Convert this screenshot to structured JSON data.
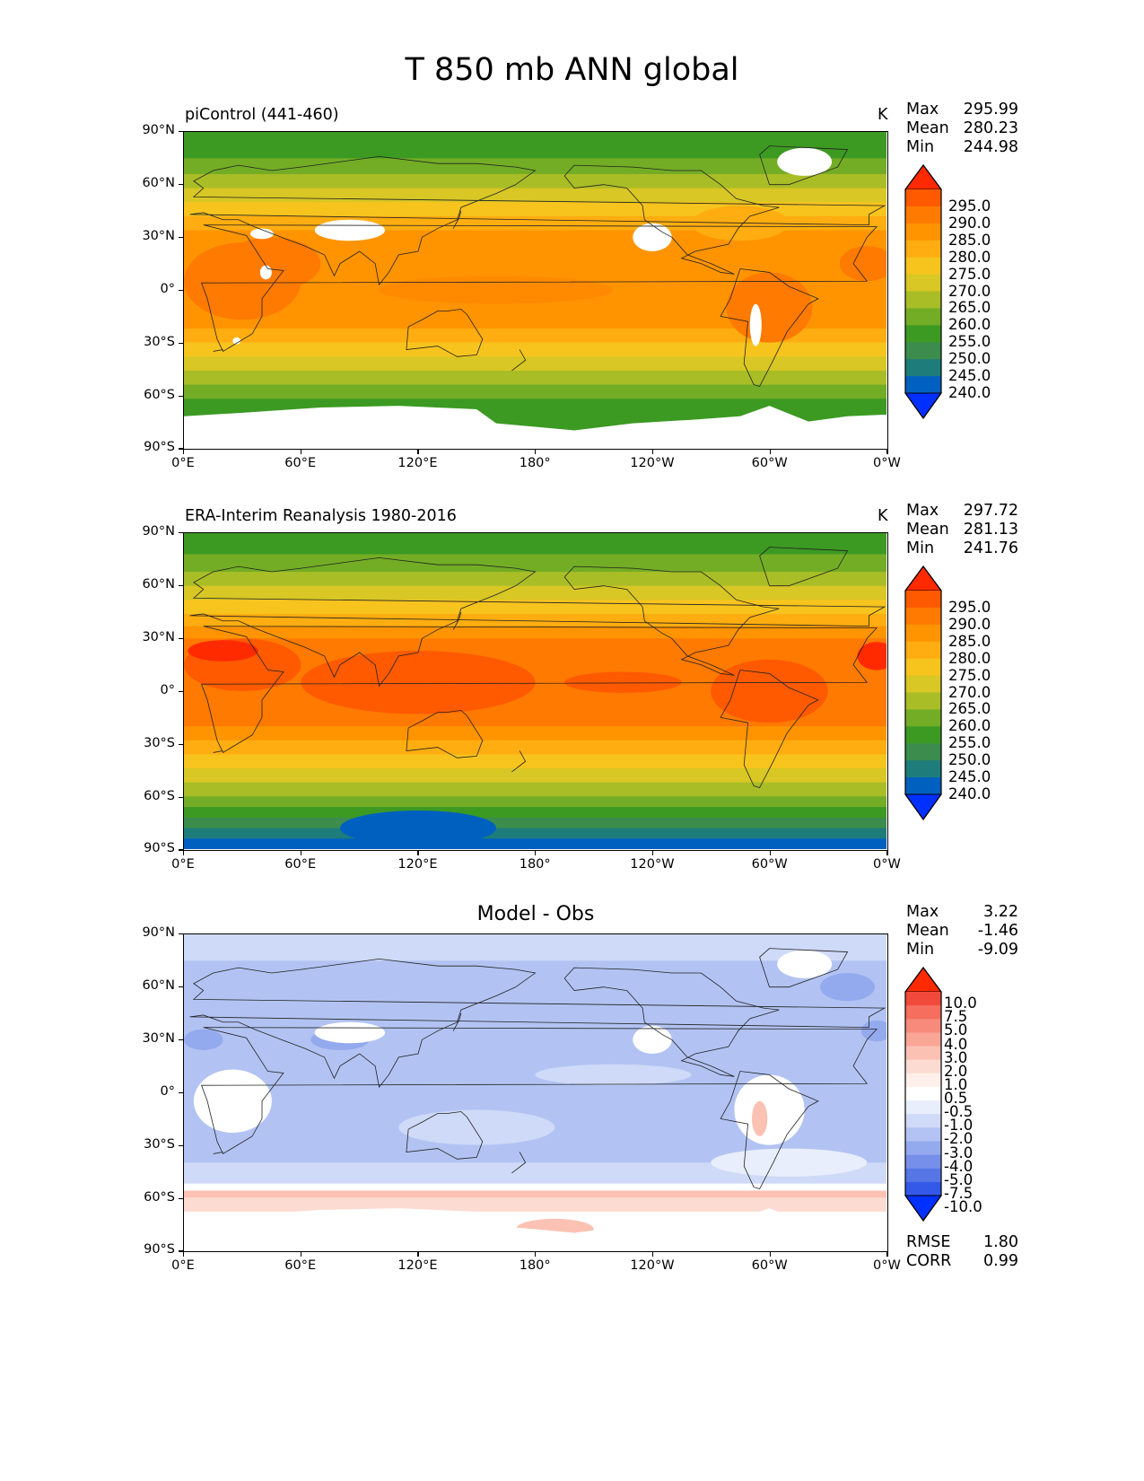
{
  "figure": {
    "title": "T 850 mb ANN global"
  },
  "chart_data": [
    {
      "type": "heatmap",
      "title": "piControl (441-460)",
      "units": "K",
      "stats": {
        "max_label": "Max",
        "max": "295.99",
        "mean_label": "Mean",
        "mean": "280.23",
        "min_label": "Min",
        "min": "244.98"
      },
      "xticks": [
        "0°E",
        "60°E",
        "120°E",
        "180°",
        "120°W",
        "60°W",
        "0°W"
      ],
      "yticks": [
        "90°N",
        "60°N",
        "30°N",
        "0°",
        "30°S",
        "60°S",
        "90°S"
      ],
      "xlim": [
        0,
        360
      ],
      "ylim": [
        -90,
        90
      ],
      "colorbar": {
        "labels": [
          "295.0",
          "290.0",
          "285.0",
          "280.0",
          "275.0",
          "270.0",
          "265.0",
          "260.0",
          "255.0",
          "250.0",
          "245.0",
          "240.0"
        ],
        "colors": [
          "#ff2a00",
          "#ff5a00",
          "#ff7a00",
          "#ff9400",
          "#ffad10",
          "#f7c41e",
          "#d8c724",
          "#a9bd27",
          "#73ad25",
          "#3c9a22",
          "#3c8d4d",
          "#1e7d7a",
          "#0060c0",
          "#0030ff"
        ]
      },
      "bands": [
        {
          "lat_top": 90,
          "lat_bottom": 75,
          "color": "#3c9a22"
        },
        {
          "lat_top": 75,
          "lat_bottom": 66,
          "color": "#73ad25"
        },
        {
          "lat_top": 66,
          "lat_bottom": 58,
          "color": "#a9bd27"
        },
        {
          "lat_top": 58,
          "lat_bottom": 50,
          "color": "#d8c724"
        },
        {
          "lat_top": 50,
          "lat_bottom": 42,
          "color": "#f7c41e"
        },
        {
          "lat_top": 42,
          "lat_bottom": 34,
          "color": "#ffad10"
        },
        {
          "lat_top": 34,
          "lat_bottom": -22,
          "color": "#ff9400"
        },
        {
          "lat_top": -22,
          "lat_bottom": -30,
          "color": "#ffad10"
        },
        {
          "lat_top": -30,
          "lat_bottom": -38,
          "color": "#f7c41e"
        },
        {
          "lat_top": -38,
          "lat_bottom": -46,
          "color": "#d8c724"
        },
        {
          "lat_top": -46,
          "lat_bottom": -54,
          "color": "#a9bd27"
        },
        {
          "lat_top": -54,
          "lat_bottom": -62,
          "color": "#73ad25"
        },
        {
          "lat_top": -62,
          "lat_bottom": -90,
          "color": "#3c9a22"
        }
      ],
      "patches": [
        {
          "lon": 30,
          "lat": 5,
          "rx": 30,
          "ry": 22,
          "color": "#ff7a00"
        },
        {
          "lon": 45,
          "lat": 15,
          "rx": 25,
          "ry": 15,
          "color": "#ff7a00"
        },
        {
          "lon": 300,
          "lat": -10,
          "rx": 22,
          "ry": 20,
          "color": "#ff7a00"
        },
        {
          "lon": 350,
          "lat": 15,
          "rx": 14,
          "ry": 10,
          "color": "#ff7a00"
        },
        {
          "lon": 160,
          "lat": 0,
          "rx": 60,
          "ry": 8,
          "color": "#ff8a00"
        },
        {
          "lon": 285,
          "lat": 38,
          "rx": 25,
          "ry": 10,
          "color": "#ffad10"
        }
      ],
      "masks": [
        {
          "lon": 85,
          "lat": 34,
          "rx": 18,
          "ry": 6
        },
        {
          "lon": 240,
          "lat": 30,
          "rx": 10,
          "ry": 8
        },
        {
          "lon": 293,
          "lat": -20,
          "rx": 3,
          "ry": 12
        },
        {
          "lon": 318,
          "lat": 73,
          "rx": 14,
          "ry": 8
        },
        {
          "lon": 42,
          "lat": 10,
          "rx": 3,
          "ry": 4
        },
        {
          "lon": 40,
          "lat": 32,
          "rx": 6,
          "ry": 3
        },
        {
          "lon": 27,
          "lat": -29,
          "rx": 2,
          "ry": 2
        }
      ],
      "antarctica_mask": true
    },
    {
      "type": "heatmap",
      "title": "ERA-Interim Reanalysis 1980-2016",
      "units": "K",
      "stats": {
        "max_label": "Max",
        "max": "297.72",
        "mean_label": "Mean",
        "mean": "281.13",
        "min_label": "Min",
        "min": "241.76"
      },
      "xticks": [
        "0°E",
        "60°E",
        "120°E",
        "180°",
        "120°W",
        "60°W",
        "0°W"
      ],
      "yticks": [
        "90°N",
        "60°N",
        "30°N",
        "0°",
        "30°S",
        "60°S",
        "90°S"
      ],
      "xlim": [
        0,
        360
      ],
      "ylim": [
        -90,
        90
      ],
      "colorbar": {
        "labels": [
          "295.0",
          "290.0",
          "285.0",
          "280.0",
          "275.0",
          "270.0",
          "265.0",
          "260.0",
          "255.0",
          "250.0",
          "245.0",
          "240.0"
        ],
        "colors": [
          "#ff2a00",
          "#ff5a00",
          "#ff7a00",
          "#ff9400",
          "#ffad10",
          "#f7c41e",
          "#d8c724",
          "#a9bd27",
          "#73ad25",
          "#3c9a22",
          "#3c8d4d",
          "#1e7d7a",
          "#0060c0",
          "#0030ff"
        ]
      },
      "bands": [
        {
          "lat_top": 90,
          "lat_bottom": 78,
          "color": "#3c9a22"
        },
        {
          "lat_top": 78,
          "lat_bottom": 68,
          "color": "#73ad25"
        },
        {
          "lat_top": 68,
          "lat_bottom": 60,
          "color": "#a9bd27"
        },
        {
          "lat_top": 60,
          "lat_bottom": 52,
          "color": "#d8c724"
        },
        {
          "lat_top": 52,
          "lat_bottom": 44,
          "color": "#f7c41e"
        },
        {
          "lat_top": 44,
          "lat_bottom": 37,
          "color": "#ffad10"
        },
        {
          "lat_top": 37,
          "lat_bottom": 30,
          "color": "#ff9400"
        },
        {
          "lat_top": 30,
          "lat_bottom": -20,
          "color": "#ff7a00"
        },
        {
          "lat_top": -20,
          "lat_bottom": -28,
          "color": "#ff9400"
        },
        {
          "lat_top": -28,
          "lat_bottom": -36,
          "color": "#ffad10"
        },
        {
          "lat_top": -36,
          "lat_bottom": -44,
          "color": "#f7c41e"
        },
        {
          "lat_top": -44,
          "lat_bottom": -52,
          "color": "#d8c724"
        },
        {
          "lat_top": -52,
          "lat_bottom": -60,
          "color": "#a9bd27"
        },
        {
          "lat_top": -60,
          "lat_bottom": -66,
          "color": "#73ad25"
        },
        {
          "lat_top": -66,
          "lat_bottom": -72,
          "color": "#3c9a22"
        },
        {
          "lat_top": -72,
          "lat_bottom": -78,
          "color": "#3c8d4d"
        },
        {
          "lat_top": -78,
          "lat_bottom": -84,
          "color": "#1e7d7a"
        },
        {
          "lat_top": -84,
          "lat_bottom": -90,
          "color": "#0060c0"
        }
      ],
      "patches": [
        {
          "lon": 120,
          "lat": 5,
          "rx": 60,
          "ry": 18,
          "color": "#ff5a00"
        },
        {
          "lon": 30,
          "lat": 15,
          "rx": 30,
          "ry": 15,
          "color": "#ff5a00"
        },
        {
          "lon": 20,
          "lat": 23,
          "rx": 18,
          "ry": 6,
          "color": "#ff2a00"
        },
        {
          "lon": 300,
          "lat": 0,
          "rx": 30,
          "ry": 18,
          "color": "#ff5a00"
        },
        {
          "lon": 355,
          "lat": 20,
          "rx": 10,
          "ry": 8,
          "color": "#ff2a00"
        },
        {
          "lon": 225,
          "lat": 5,
          "rx": 30,
          "ry": 6,
          "color": "#ff5a00"
        },
        {
          "lon": 120,
          "lat": -78,
          "rx": 40,
          "ry": 10,
          "color": "#0060c0"
        }
      ],
      "masks": [],
      "antarctica_mask": false
    },
    {
      "type": "heatmap",
      "title": "Model - Obs",
      "units": "",
      "stats": {
        "max_label": "Max",
        "max": "3.22",
        "mean_label": "Mean",
        "mean": "-1.46",
        "min_label": "Min",
        "min": "-9.09"
      },
      "metrics": {
        "rmse_label": "RMSE",
        "rmse": "1.80",
        "corr_label": "CORR",
        "corr": "0.99"
      },
      "xticks": [
        "0°E",
        "60°E",
        "120°E",
        "180°",
        "120°W",
        "60°W",
        "0°W"
      ],
      "yticks": [
        "90°N",
        "60°N",
        "30°N",
        "0°",
        "30°S",
        "60°S",
        "90°S"
      ],
      "xlim": [
        0,
        360
      ],
      "ylim": [
        -90,
        90
      ],
      "colorbar": {
        "labels": [
          "10.0",
          "7.5",
          "5.0",
          "4.0",
          "3.0",
          "2.0",
          "1.0",
          "0.5",
          "-0.5",
          "-1.0",
          "-2.0",
          "-3.0",
          "-4.0",
          "-5.0",
          "-7.5",
          "-10.0"
        ],
        "colors": [
          "#ff2a00",
          "#f14a3c",
          "#f56e5e",
          "#f78a7a",
          "#f9a696",
          "#fbc2b4",
          "#fcdcd2",
          "#feefea",
          "#ffffff",
          "#e8eefc",
          "#cfdaf8",
          "#b2c3f3",
          "#94aaee",
          "#7690ea",
          "#5676e6",
          "#3458e8",
          "#0030ff"
        ]
      },
      "bands": [
        {
          "lat_top": 90,
          "lat_bottom": 75,
          "color": "#cfdaf8"
        },
        {
          "lat_top": 75,
          "lat_bottom": 45,
          "color": "#b2c3f3"
        },
        {
          "lat_top": 45,
          "lat_bottom": 10,
          "color": "#b2c3f3"
        },
        {
          "lat_top": 10,
          "lat_bottom": -40,
          "color": "#b2c3f3"
        },
        {
          "lat_top": -40,
          "lat_bottom": -52,
          "color": "#cfdaf8"
        },
        {
          "lat_top": -52,
          "lat_bottom": -56,
          "color": "#ffffff"
        },
        {
          "lat_top": -56,
          "lat_bottom": -60,
          "color": "#fbc2b4"
        },
        {
          "lat_top": -60,
          "lat_bottom": -68,
          "color": "#fcdcd2"
        },
        {
          "lat_top": -68,
          "lat_bottom": -90,
          "color": "#ffffff"
        }
      ],
      "patches": [
        {
          "lon": 80,
          "lat": 30,
          "rx": 15,
          "ry": 6,
          "color": "#94aaee"
        },
        {
          "lon": 10,
          "lat": 30,
          "rx": 10,
          "ry": 6,
          "color": "#94aaee"
        },
        {
          "lon": 355,
          "lat": 35,
          "rx": 8,
          "ry": 6,
          "color": "#94aaee"
        },
        {
          "lon": 340,
          "lat": 60,
          "rx": 14,
          "ry": 8,
          "color": "#94aaee"
        },
        {
          "lon": 25,
          "lat": -5,
          "rx": 20,
          "ry": 18,
          "color": "#ffffff"
        },
        {
          "lon": 300,
          "lat": -10,
          "rx": 18,
          "ry": 20,
          "color": "#ffffff"
        },
        {
          "lon": 295,
          "lat": -15,
          "rx": 4,
          "ry": 10,
          "color": "#fbc2b4"
        },
        {
          "lon": 150,
          "lat": -20,
          "rx": 40,
          "ry": 10,
          "color": "#cfdaf8"
        },
        {
          "lon": 220,
          "lat": 10,
          "rx": 40,
          "ry": 6,
          "color": "#cfdaf8"
        },
        {
          "lon": 310,
          "lat": -40,
          "rx": 40,
          "ry": 8,
          "color": "#e8eefc"
        },
        {
          "lon": 190,
          "lat": -78,
          "rx": 20,
          "ry": 6,
          "color": "#fbc2b4"
        },
        {
          "lon": 300,
          "lat": -80,
          "rx": 30,
          "ry": 6,
          "color": "#fbc2b4"
        }
      ],
      "masks": [
        {
          "lon": 85,
          "lat": 34,
          "rx": 18,
          "ry": 6
        },
        {
          "lon": 240,
          "lat": 30,
          "rx": 10,
          "ry": 8
        },
        {
          "lon": 318,
          "lat": 73,
          "rx": 14,
          "ry": 8
        }
      ],
      "antarctica_mask": true
    }
  ]
}
